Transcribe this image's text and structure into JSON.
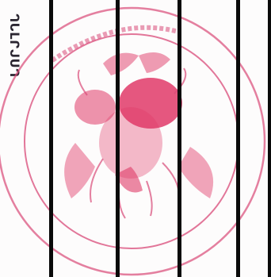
{
  "document": {
    "side_number": "ᒉᒐᒪᒋᒍᑌᒉ"
  },
  "stamp": {
    "ring_color": "#d84a78",
    "ink_color": "#e03a68",
    "emblem_icon": "hermit-crab-emblem",
    "illegible_arc_text": "ollllllllllll"
  },
  "ruling": {
    "line_color": "#0a0a0a",
    "count": 5
  }
}
